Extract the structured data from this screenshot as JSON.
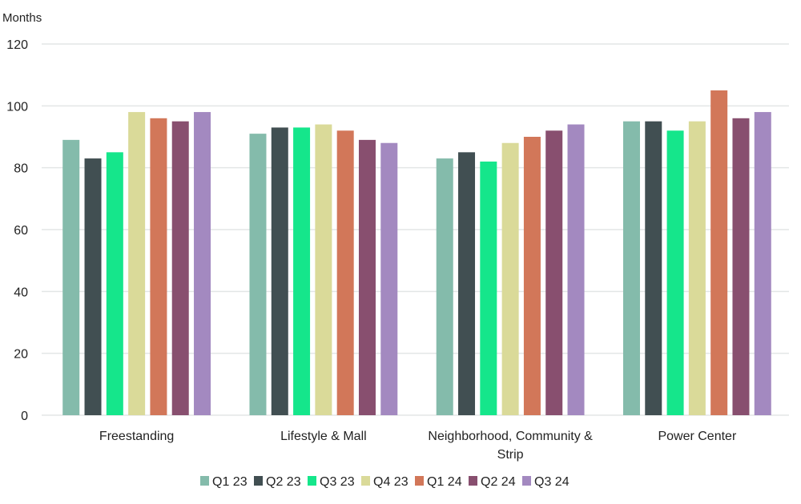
{
  "chart_data": {
    "type": "bar",
    "ylabel": "Months",
    "ylim": [
      0,
      120
    ],
    "yticks": [
      0,
      20,
      40,
      60,
      80,
      100,
      120
    ],
    "grid": true,
    "legend_position": "bottom",
    "categories": [
      "Freestanding",
      "Lifestyle & Mall",
      "Neighborhood, Community & Strip",
      "Power Center"
    ],
    "category_lines": [
      [
        "Freestanding"
      ],
      [
        "Lifestyle & Mall"
      ],
      [
        "Neighborhood, Community &",
        "Strip"
      ],
      [
        "Power Center"
      ]
    ],
    "series": [
      {
        "name": "Q1 23",
        "color": "#84bbab",
        "values": [
          89,
          91,
          83,
          95
        ]
      },
      {
        "name": "Q2 23",
        "color": "#414f52",
        "values": [
          83,
          93,
          85,
          95
        ]
      },
      {
        "name": "Q3 23",
        "color": "#15e68b",
        "values": [
          85,
          93,
          82,
          92
        ]
      },
      {
        "name": "Q4 23",
        "color": "#dada99",
        "values": [
          98,
          94,
          88,
          95
        ]
      },
      {
        "name": "Q1 24",
        "color": "#d27759",
        "values": [
          96,
          92,
          90,
          105
        ]
      },
      {
        "name": "Q2 24",
        "color": "#884f6f",
        "values": [
          95,
          89,
          92,
          96
        ]
      },
      {
        "name": "Q3 24",
        "color": "#a389c0",
        "values": [
          98,
          88,
          94,
          98
        ]
      }
    ]
  }
}
